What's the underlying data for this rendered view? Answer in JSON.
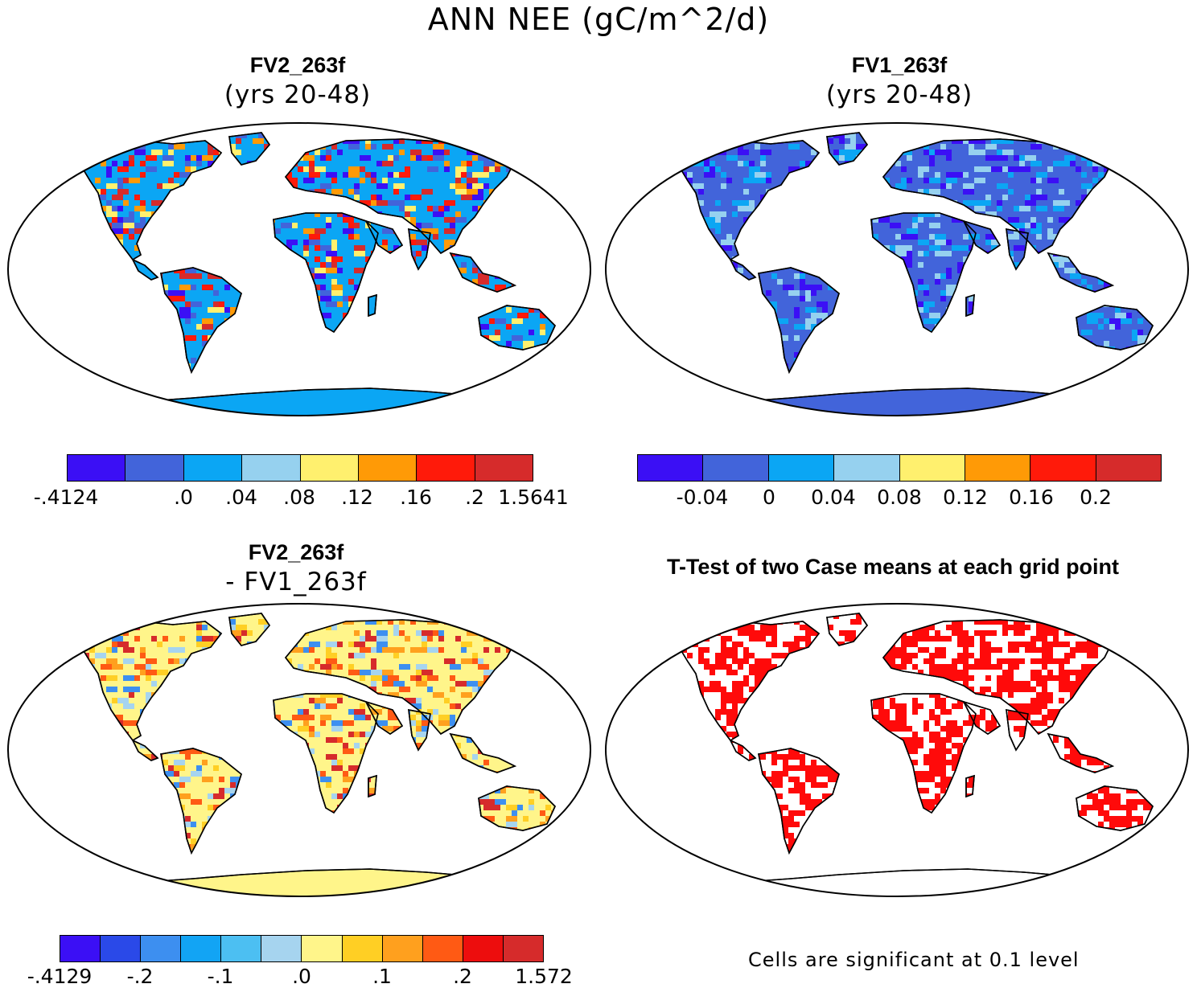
{
  "title": "ANN NEE (gC/m^2/d)",
  "panels": [
    {
      "id": "fv2",
      "title": "FV2_263f",
      "subtitle": "(yrs 20-48)",
      "land_fill": "#0ba6f4",
      "hotspot_colors": [
        "#d62b2b",
        "#ff1a0a",
        "#ff9a06",
        "#fff06e",
        "#3b0ff5",
        "#4264da"
      ],
      "colorbar": {
        "colors": [
          "#3b0ff5",
          "#4264da",
          "#0ba6f4",
          "#96d1ef",
          "#fff06e",
          "#ff9a06",
          "#ff1a0a",
          "#d62b2b"
        ],
        "labels": [
          "-.4124",
          ".0",
          ".04",
          ".08",
          ".12",
          ".16",
          ".2",
          "1.5641"
        ]
      }
    },
    {
      "id": "fv1",
      "title": "FV1_263f",
      "subtitle": "(yrs 20-48)",
      "land_fill": "#4264da",
      "hotspot_colors": [
        "#0ba6f4",
        "#3b0ff5",
        "#96d1ef"
      ],
      "colorbar": {
        "colors": [
          "#3b0ff5",
          "#4264da",
          "#0ba6f4",
          "#96d1ef",
          "#fff06e",
          "#ff9a06",
          "#ff1a0a",
          "#d62b2b"
        ],
        "labels": [
          "-0.04",
          "0",
          "0.04",
          "0.08",
          "0.12",
          "0.16",
          "0.2"
        ]
      }
    },
    {
      "id": "diff",
      "title": "FV2_263f",
      "subtitle": "- FV1_263f",
      "land_fill": "#fff58a",
      "hotspot_colors": [
        "#ffcf24",
        "#ffa01e",
        "#ff5a14",
        "#d62b2b",
        "#a6d4ef",
        "#3d8ff0"
      ],
      "colorbar": {
        "colors": [
          "#3b0ff5",
          "#2a49e8",
          "#3d8ff0",
          "#12a4f4",
          "#4cbff2",
          "#a6d4ef",
          "#fff58a",
          "#ffcf24",
          "#ffa01e",
          "#ff5a14",
          "#ed0d0d",
          "#d62b2b"
        ],
        "labels": [
          "-.4129",
          "-.2",
          "-.1",
          ".0",
          ".1",
          ".2",
          "1.572"
        ]
      }
    },
    {
      "id": "ttest",
      "title": "T-Test of two Case means at each grid point",
      "land_fill": "#ffffff",
      "sig_color": "#ff0a0a",
      "note": "Cells are significant at 0.1 level"
    }
  ]
}
